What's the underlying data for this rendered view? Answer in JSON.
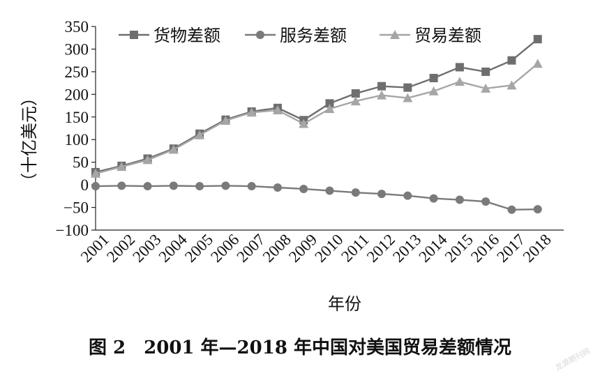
{
  "caption": "图 2　2001 年—2018 年中国对美国贸易差额情况",
  "watermark": "龙源期刊网",
  "chart_data": {
    "type": "line",
    "title": "",
    "xlabel": "年份",
    "ylabel": "（十亿美元）",
    "ylim": [
      -100,
      350
    ],
    "yticks": [
      -100,
      -50,
      0,
      50,
      100,
      150,
      200,
      250,
      300,
      350
    ],
    "x": [
      "2001",
      "2002",
      "2003",
      "2004",
      "2005",
      "2006",
      "2007",
      "2008",
      "2009",
      "2010",
      "2011",
      "2012",
      "2013",
      "2014",
      "2015",
      "2016",
      "2017",
      "2018"
    ],
    "grid": false,
    "legend": "top",
    "series": [
      {
        "name": "货物差额",
        "marker": "square",
        "color": "#6e6e6e",
        "values": [
          28,
          42,
          58,
          80,
          113,
          144,
          162,
          170,
          143,
          180,
          202,
          218,
          215,
          236,
          260,
          250,
          275,
          322
        ]
      },
      {
        "name": "服务差额",
        "marker": "circle",
        "color": "#7a7a7a",
        "values": [
          -3,
          -2,
          -3,
          -2,
          -3,
          -2,
          -3,
          -6,
          -9,
          -13,
          -17,
          -20,
          -24,
          -30,
          -33,
          -37,
          -55,
          -54
        ]
      },
      {
        "name": "贸易差额",
        "marker": "triangle",
        "color": "#a6a6a6",
        "values": [
          25,
          40,
          55,
          78,
          110,
          142,
          160,
          165,
          135,
          168,
          185,
          198,
          192,
          207,
          228,
          213,
          220,
          268
        ]
      }
    ]
  }
}
